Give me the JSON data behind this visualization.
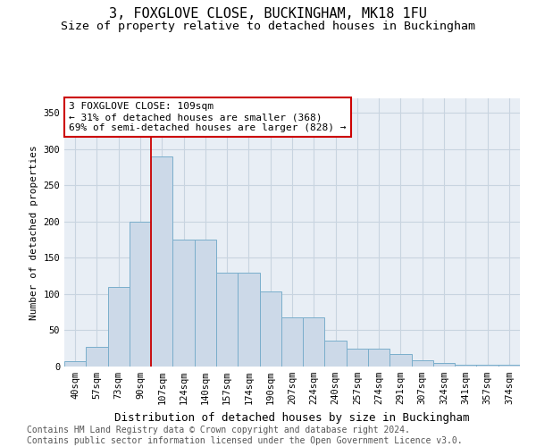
{
  "title": "3, FOXGLOVE CLOSE, BUCKINGHAM, MK18 1FU",
  "subtitle": "Size of property relative to detached houses in Buckingham",
  "xlabel": "Distribution of detached houses by size in Buckingham",
  "ylabel": "Number of detached properties",
  "footer_line1": "Contains HM Land Registry data © Crown copyright and database right 2024.",
  "footer_line2": "Contains public sector information licensed under the Open Government Licence v3.0.",
  "categories": [
    "40sqm",
    "57sqm",
    "73sqm",
    "90sqm",
    "107sqm",
    "124sqm",
    "140sqm",
    "157sqm",
    "174sqm",
    "190sqm",
    "207sqm",
    "224sqm",
    "240sqm",
    "257sqm",
    "274sqm",
    "291sqm",
    "307sqm",
    "324sqm",
    "341sqm",
    "357sqm",
    "374sqm"
  ],
  "bar_values": [
    7,
    27,
    110,
    200,
    290,
    175,
    175,
    130,
    130,
    103,
    68,
    68,
    36,
    25,
    25,
    17,
    9,
    5,
    3,
    2,
    2
  ],
  "bar_color": "#ccd9e8",
  "bar_edge_color": "#7aaecb",
  "vline_color": "#cc0000",
  "vline_x_index": 4,
  "annotation_text": "3 FOXGLOVE CLOSE: 109sqm\n← 31% of detached houses are smaller (368)\n69% of semi-detached houses are larger (828) →",
  "annotation_box_color": "white",
  "annotation_box_edge": "#cc0000",
  "ylim": [
    0,
    370
  ],
  "yticks": [
    0,
    50,
    100,
    150,
    200,
    250,
    300,
    350
  ],
  "plot_bg": "#e8eef5",
  "grid_color": "#c8d4e0",
  "title_fontsize": 11,
  "subtitle_fontsize": 9.5,
  "ylabel_fontsize": 8,
  "xlabel_fontsize": 9,
  "tick_fontsize": 7.5,
  "annot_fontsize": 8,
  "footer_fontsize": 7
}
